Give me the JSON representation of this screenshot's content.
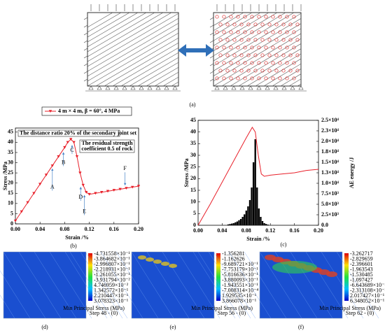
{
  "figure_a_label": "(a)",
  "chart_data": [
    {
      "type": "line",
      "label": "(b)",
      "xlabel": "Strain /%",
      "ylabel": "Stress /MPa",
      "xlim": [
        0,
        0.2
      ],
      "xticks": [
        {
          "value": 0,
          "label": "0.00"
        },
        0.04,
        0.08,
        0.12,
        0.16,
        {
          "value": 0.2,
          "label": "0.20"
        }
      ],
      "ylim": [
        0,
        47
      ],
      "yticks": [
        0,
        5,
        10,
        15,
        20,
        25,
        30,
        35,
        40,
        45
      ],
      "series": [
        {
          "name": "4 m × 4 m, β = 60°, 4 MPa",
          "color": "#e8202a",
          "x": [
            0,
            0.01,
            0.02,
            0.03,
            0.04,
            0.05,
            0.06,
            0.07,
            0.08,
            0.085,
            0.09,
            0.095,
            0.1,
            0.105,
            0.11,
            0.115,
            0.12,
            0.13,
            0.14,
            0.15,
            0.16,
            0.17,
            0.18,
            0.19,
            0.2
          ],
          "values": [
            1.5,
            6,
            10.5,
            15,
            19.5,
            24,
            28.5,
            33,
            37.5,
            40,
            41.5,
            40,
            33,
            25,
            19,
            15.5,
            14.5,
            15,
            15.5,
            16,
            16.5,
            17,
            17.5,
            18,
            18.5
          ]
        }
      ],
      "annotations": [
        "The distance ratio  20%  of the secondary joint set",
        [
          "The residual strength",
          "coefficient 0.5 of rock"
        ]
      ],
      "points": [
        "A",
        "B",
        "C",
        "D",
        "E",
        "F"
      ]
    },
    {
      "type": "combo",
      "label": "(c)",
      "xlabel": "Strain /%",
      "ylabel": "Stress /MPa",
      "y2label": "AE energy /J",
      "xlim": [
        0,
        0.2
      ],
      "xticks": [
        {
          "value": 0,
          "label": "0.00"
        },
        0.04,
        0.08,
        0.12,
        0.16,
        {
          "value": 0.2,
          "label": "0.20"
        }
      ],
      "ylim": [
        0,
        45
      ],
      "yticks": [
        0,
        5,
        10,
        15,
        20,
        25,
        30,
        35,
        40,
        45
      ],
      "y2lim": [
        0,
        25000
      ],
      "y2ticks": [
        {
          "value": 0,
          "label": "0.0"
        },
        {
          "value": 2500,
          "label": "2.5×10³"
        },
        {
          "value": 5000,
          "label": "5.0×10³"
        },
        {
          "value": 7500,
          "label": "7.5×10³"
        },
        {
          "value": 10000,
          "label": "1.0×10⁴"
        },
        {
          "value": 12500,
          "label": "1.3×10⁴"
        },
        {
          "value": 15000,
          "label": "1.5×10⁴"
        },
        {
          "value": 17500,
          "label": "1.8×10⁴"
        },
        {
          "value": 20000,
          "label": "2.0×10⁴"
        },
        {
          "value": 22500,
          "label": "2.3×10⁴"
        },
        {
          "value": 25000,
          "label": "2.5×10⁴"
        }
      ],
      "series": [
        {
          "type": "bar",
          "axis": "y2",
          "color": "#000000",
          "x": [
            0.05,
            0.053,
            0.056,
            0.059,
            0.062,
            0.065,
            0.068,
            0.071,
            0.074,
            0.077,
            0.08,
            0.083,
            0.086,
            0.089,
            0.092,
            0.095,
            0.098,
            0.101,
            0.104,
            0.107,
            0.11,
            0.113,
            0.116
          ],
          "values": [
            200,
            300,
            400,
            500,
            700,
            900,
            1200,
            1500,
            2000,
            2600,
            3500,
            4500,
            6000,
            9000,
            15000,
            20500,
            9000,
            4000,
            2000,
            1000,
            500,
            300,
            150
          ]
        },
        {
          "type": "line",
          "color": "#e8202a",
          "x": [
            0,
            0.02,
            0.04,
            0.06,
            0.08,
            0.09,
            0.095,
            0.1,
            0.105,
            0.11,
            0.12,
            0.14,
            0.16,
            0.18,
            0.2
          ],
          "values": [
            0,
            9,
            18.5,
            28,
            37.5,
            42,
            40,
            30,
            22,
            21,
            21.5,
            22,
            22.5,
            23.5,
            24
          ]
        }
      ]
    }
  ],
  "contours": [
    {
      "label": "(d)",
      "legend_title": "Min Principal Stress (MPa)",
      "step": "Step 48 - (0)",
      "colorbar": [
        "-4.731558×10⁻¹",
        "-3.864682×10⁻¹",
        "-2.996807×10⁻¹",
        "-2.218931×10⁻¹",
        "-1.261055×10⁻¹",
        "-3.931794×10⁻²",
        "4.746959×10⁻²",
        "1.342572×10⁻¹",
        "2.210447×10⁻¹",
        "3.078323×10⁻¹"
      ]
    },
    {
      "label": "(e)",
      "legend_title": "Min Principal Stress (MPa)",
      "step": "Step 56 - (0)",
      "colorbar": [
        "-1.356281",
        "-1.162626",
        "-9.689721×10⁻¹",
        "-7.753179×10⁻¹",
        "-5.816636×10⁻¹",
        "-3.880093×10⁻¹",
        "-1.943551×10⁻¹",
        "-7.008314×10⁻⁴",
        "1.929535×10⁻¹",
        "3.866078×10⁻¹"
      ]
    },
    {
      "label": "(f)",
      "legend_title": "Min Principal Stress (MPa)",
      "step": "Step 62 - (0)",
      "colorbar": [
        "-3.262717",
        "-2.829659",
        "-2.396601",
        "-1.963543",
        "-1.530485",
        "-1.097427",
        "-6.643689×10⁻¹",
        "-2.313108×10⁻¹",
        "2.017427×10⁻¹",
        "6.348052×10⁻¹"
      ]
    }
  ]
}
